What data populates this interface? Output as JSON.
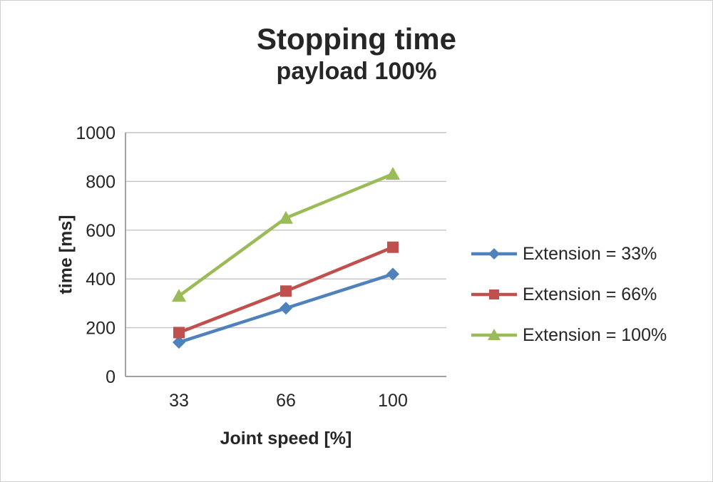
{
  "chart_data": {
    "type": "line",
    "title": "Stopping time",
    "subtitle": "payload 100%",
    "xlabel": "Joint speed [%]",
    "ylabel": "time [ms]",
    "categories": [
      "33",
      "66",
      "100"
    ],
    "series": [
      {
        "name": "Extension = 33%",
        "marker": "diamond",
        "color": "#4F81BD",
        "values": [
          140,
          280,
          420
        ]
      },
      {
        "name": "Extension = 66%",
        "marker": "square",
        "color": "#C0504D",
        "values": [
          180,
          350,
          530
        ]
      },
      {
        "name": "Extension = 100%",
        "marker": "triangle",
        "color": "#9BBB59",
        "values": [
          330,
          650,
          830
        ]
      }
    ],
    "ylim": [
      0,
      1000
    ],
    "ytick_step": 200,
    "grid": true,
    "legend_position": "right",
    "colors": {
      "gridline": "#c3c3c3",
      "axis": "#8c8c8c",
      "text": "#262626"
    }
  }
}
